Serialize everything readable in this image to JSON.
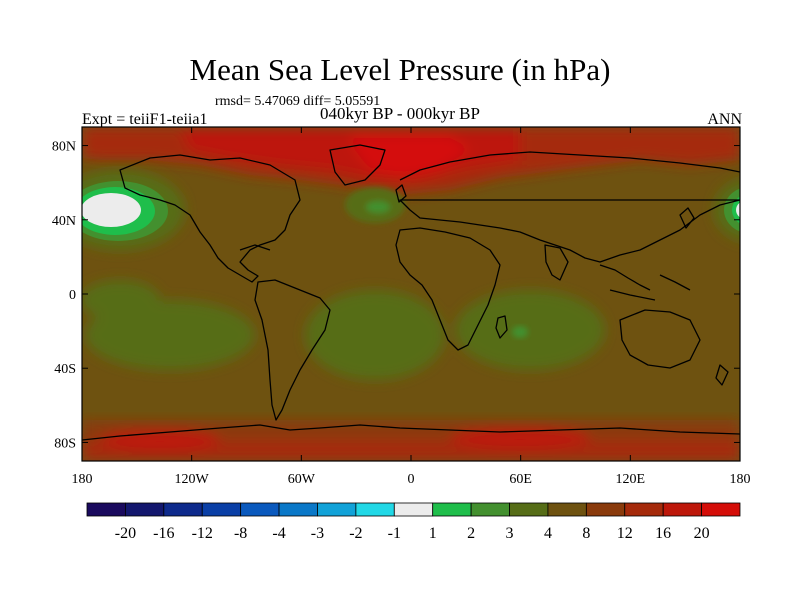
{
  "title": "Mean Sea Level Pressure (in hPa)",
  "stats": "rmsd= 5.47069 diff= 5.05591",
  "subtitle": "040kyr BP - 000kyr BP",
  "left_label": "Expt = teiiF1-teiia1",
  "right_label": "ANN",
  "colors": {
    "background": "#ffffff",
    "base_field": "#6e5210",
    "land_outline": "#000000"
  },
  "chart_data": {
    "type": "heatmap",
    "projection": "cylindrical-equidistant",
    "xlim": [
      -180,
      180
    ],
    "ylim": [
      -90,
      90
    ],
    "x_ticks": [
      {
        "value": -180,
        "label": "180"
      },
      {
        "value": -120,
        "label": "120W"
      },
      {
        "value": -60,
        "label": "60W"
      },
      {
        "value": 0,
        "label": "0"
      },
      {
        "value": 60,
        "label": "60E"
      },
      {
        "value": 120,
        "label": "120E"
      },
      {
        "value": 180,
        "label": "180"
      }
    ],
    "y_ticks": [
      {
        "value": 80,
        "label": "80N"
      },
      {
        "value": 40,
        "label": "40N"
      },
      {
        "value": 0,
        "label": "0"
      },
      {
        "value": -40,
        "label": "40S"
      },
      {
        "value": -80,
        "label": "80S"
      }
    ],
    "colorbar": {
      "boundaries": [
        "-20",
        "-16",
        "-12",
        "-8",
        "-4",
        "-3",
        "-2",
        "-1",
        "1",
        "2",
        "3",
        "4",
        "8",
        "12",
        "16",
        "20"
      ],
      "colors": [
        "#1a0a5e",
        "#13176e",
        "#0e2a8c",
        "#0a3fa6",
        "#0a59bd",
        "#0a78c8",
        "#11a2d8",
        "#22d8e6",
        "#ececec",
        "#1fbe4b",
        "#43902f",
        "#566d17",
        "#6e5210",
        "#8a3b0c",
        "#a52a0b",
        "#bd170a",
        "#d40d08"
      ]
    },
    "regions": [
      {
        "name": "field-fill",
        "category": "8",
        "lon": [
          -180,
          180
        ],
        "lat": [
          -90,
          90
        ]
      },
      {
        "name": "arctic-high",
        "category": "16",
        "lon": [
          -120,
          60
        ],
        "lat": [
          62,
          90
        ]
      },
      {
        "name": "greenland-high",
        "category": "20",
        "lon": [
          -30,
          10
        ],
        "lat": [
          70,
          86
        ]
      },
      {
        "name": "south-pacific-low",
        "category": "4",
        "lon": [
          -170,
          -60
        ],
        "lat": [
          -45,
          -10
        ]
      },
      {
        "name": "south-atlantic-low",
        "category": "4",
        "lon": [
          -40,
          20
        ],
        "lat": [
          -50,
          -10
        ]
      },
      {
        "name": "indian-ocean-low",
        "category": "4",
        "lon": [
          40,
          110
        ],
        "lat": [
          -50,
          -5
        ]
      },
      {
        "name": "north-pacific-low-west",
        "category": "1",
        "lon": [
          -180,
          -140
        ],
        "lat": [
          30,
          58
        ]
      },
      {
        "name": "north-pacific-low-east",
        "category": "1",
        "lon": [
          165,
          180
        ],
        "lat": [
          34,
          56
        ]
      },
      {
        "name": "north-atlantic-low",
        "category": "3",
        "lon": [
          -40,
          -10
        ],
        "lat": [
          30,
          50
        ]
      },
      {
        "name": "antarctic-high",
        "category": "12",
        "lon": [
          -180,
          180
        ],
        "lat": [
          -90,
          -70
        ]
      }
    ]
  }
}
